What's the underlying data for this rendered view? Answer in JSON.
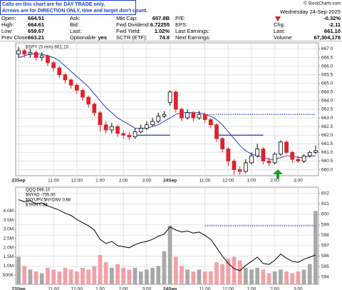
{
  "note": [
    "Calls on this chart are for DAY TRADE only.",
    "Arrows are for DIRECTION ONLY, time and target don't count."
  ],
  "copyright": "© StockCharts.com",
  "quote": {
    "columns": [
      [
        {
          "label": "Open:",
          "value": "664.51"
        },
        {
          "label": "High:",
          "value": "664.61"
        },
        {
          "label": "Low:",
          "value": "659.67"
        },
        {
          "label": "Prev Close:",
          "value": "663.21"
        }
      ],
      [
        {
          "label": "Ask:"
        },
        {
          "label": "Bid:"
        },
        {
          "label": "Last:"
        },
        {
          "label": "Optionable:",
          "value": "yes"
        }
      ],
      [
        {
          "label": "Mkt Cap:",
          "value": "657.8B"
        },
        {
          "label": "Fwd Dividend:",
          "value": "6.72255"
        },
        {
          "label": "Fwd Yield:",
          "value": "1.02%"
        },
        {
          "label": "SCTR (ETF):",
          "value": "74.8"
        }
      ],
      [
        {
          "label": "P/E:"
        },
        {
          "label": "EPS:"
        },
        {
          "label": "Last Earnings:"
        },
        {
          "label": "Next Earnings:"
        }
      ]
    ],
    "date": "Wednesday 24-Sep-2025",
    "change_pct": "-0.32%",
    "right": [
      {
        "label": "Chg:",
        "value": "-2.11"
      },
      {
        "label": "Last:",
        "value": "661.10"
      },
      {
        "label": "Volume:",
        "value": "67,304,176"
      }
    ]
  },
  "chart_data": [
    {
      "type": "candlestick",
      "label": "$SPY (5 min) 661.10",
      "categories": [
        "23Sep",
        null,
        null,
        null,
        null,
        null,
        "11:00",
        null,
        null,
        null,
        "12:00",
        null,
        null,
        null,
        "1:00",
        null,
        null,
        null,
        "2:00",
        null,
        null,
        null,
        "3:00",
        null,
        null,
        null,
        "24Sep",
        null,
        null,
        null,
        null,
        null,
        "11:00",
        null,
        null,
        null,
        "12:00",
        null,
        null,
        null,
        "1:00",
        null,
        null,
        null,
        "2:00",
        null,
        null,
        null,
        "3:00",
        null,
        null,
        null
      ],
      "open": [
        666.7,
        666.9,
        666.7,
        666.8,
        666.5,
        666.6,
        666.2,
        665.9,
        665.5,
        665.2,
        664.9,
        664.6,
        664.2,
        663.8,
        663.3,
        662.6,
        662.3,
        662.5,
        662.1,
        662.0,
        661.9,
        662.2,
        662.4,
        662.6,
        662.8,
        663.1,
        663.9,
        664.5,
        663.5,
        663.0,
        663.3,
        663.0,
        663.2,
        662.9,
        662.6,
        661.8,
        661.2,
        660.5,
        660.0,
        659.9,
        660.4,
        660.8,
        661.2,
        660.5,
        660.4,
        660.9,
        661.6,
        661.0,
        660.6,
        660.5,
        660.8,
        661.0
      ],
      "high": [
        667.1,
        667.0,
        667.0,
        666.9,
        666.8,
        666.7,
        666.3,
        666.0,
        665.6,
        665.3,
        665.0,
        664.7,
        664.3,
        663.9,
        663.4,
        662.8,
        662.7,
        662.6,
        662.3,
        662.2,
        662.4,
        662.6,
        662.8,
        663.0,
        663.3,
        663.4,
        664.6,
        664.6,
        663.6,
        663.5,
        663.4,
        663.4,
        663.3,
        663.0,
        662.7,
        661.9,
        661.3,
        660.6,
        660.2,
        660.6,
        661.0,
        661.5,
        661.3,
        660.7,
        661.0,
        661.7,
        661.7,
        661.1,
        660.8,
        660.9,
        661.1,
        661.4
      ],
      "low": [
        666.5,
        666.5,
        666.5,
        666.3,
        666.3,
        666.0,
        665.7,
        665.3,
        665.0,
        664.7,
        664.4,
        664.0,
        663.6,
        663.1,
        662.2,
        662.1,
        662.1,
        661.9,
        661.8,
        661.7,
        661.8,
        662.1,
        662.3,
        662.5,
        662.7,
        663.0,
        663.7,
        663.3,
        662.8,
        662.9,
        662.8,
        662.9,
        662.7,
        662.4,
        661.6,
        661.0,
        660.2,
        659.7,
        659.7,
        659.8,
        660.3,
        660.7,
        660.3,
        660.2,
        660.3,
        660.8,
        660.9,
        660.4,
        660.4,
        660.4,
        660.7,
        660.9
      ],
      "close": [
        666.9,
        666.7,
        666.8,
        666.5,
        666.6,
        666.2,
        665.9,
        665.5,
        665.2,
        664.9,
        664.6,
        664.2,
        663.8,
        663.3,
        662.6,
        662.3,
        662.5,
        662.1,
        662.0,
        661.9,
        662.2,
        662.4,
        662.6,
        662.8,
        663.1,
        663.2,
        664.5,
        663.5,
        663.0,
        663.3,
        663.0,
        663.2,
        662.9,
        662.6,
        661.8,
        661.2,
        660.5,
        660.0,
        659.9,
        660.4,
        660.8,
        661.2,
        660.5,
        660.4,
        660.9,
        661.6,
        661.0,
        660.6,
        660.5,
        660.8,
        661.0,
        661.1
      ],
      "up_color": "#000000",
      "down_color": "#e0202a",
      "overlay": {
        "color": "#2b3fbf",
        "values": [
          666.5,
          666.6,
          666.7,
          666.7,
          666.7,
          666.6,
          666.5,
          666.3,
          666.0,
          665.7,
          665.4,
          665.1,
          664.8,
          664.4,
          664.0,
          663.6,
          663.3,
          663.0,
          662.8,
          662.6,
          662.4,
          662.4,
          662.4,
          662.5,
          662.6,
          662.8,
          663.0,
          663.2,
          663.3,
          663.3,
          663.3,
          663.3,
          663.2,
          663.1,
          662.9,
          662.6,
          662.2,
          661.8,
          661.4,
          661.1,
          660.9,
          660.8,
          660.7,
          660.6,
          660.6,
          660.7,
          660.8,
          660.8,
          660.7,
          660.7,
          660.8,
          660.8
        ]
      },
      "levels": [
        {
          "value": 663.2,
          "from": 32,
          "to": 51,
          "style": "dotted",
          "color": "#3344cc"
        },
        {
          "value": 662.0,
          "from": 20,
          "to": 26,
          "style": "solid",
          "color": "#2233bb"
        },
        {
          "value": 662.0,
          "from": 34,
          "to": 42,
          "style": "solid",
          "color": "#2233bb"
        }
      ],
      "ylim": [
        659.65,
        667.35
      ],
      "yticks": [
        {
          "value": 660,
          "label": "660.0"
        },
        660.5,
        {
          "value": 661,
          "label": "661.0"
        },
        661.5,
        {
          "value": 662,
          "label": "662.0"
        },
        662.5,
        {
          "value": 663,
          "label": "663.0"
        },
        663.5,
        {
          "value": 664,
          "label": "664.0"
        },
        664.5,
        {
          "value": 665,
          "label": "665.0"
        },
        665.5,
        {
          "value": 666,
          "label": "666.0"
        },
        666.5,
        {
          "value": 667,
          "label": "667.0"
        }
      ],
      "grid": true
    },
    {
      "type": "line",
      "labels": [
        "QQQ 596.10",
        "$NYAD -705.00",
        "$NYUPV:$NYDNV 0.68",
        "$TRIN 0.88"
      ],
      "categories": [
        "23Sep",
        null,
        null,
        null,
        null,
        null,
        "11:00",
        null,
        null,
        null,
        "12:00",
        null,
        null,
        null,
        "1:00",
        null,
        null,
        null,
        "2:00",
        null,
        null,
        null,
        "3:00",
        null,
        null,
        null,
        "24Sep",
        null,
        null,
        null,
        null,
        null,
        "11:00",
        null,
        null,
        null,
        "12:00",
        null,
        null,
        null,
        "1:00",
        null,
        null,
        null,
        "2:00",
        null,
        null,
        null,
        "3:00",
        null,
        null,
        null
      ],
      "series": [
        {
          "color": "#000000",
          "values": [
            601.4,
            601.2,
            601.3,
            601.0,
            601.1,
            600.8,
            600.6,
            600.4,
            600.1,
            599.9,
            599.5,
            599.2,
            598.9,
            598.5,
            597.6,
            597.2,
            597.4,
            597.0,
            596.9,
            596.8,
            597.1,
            597.3,
            597.4,
            597.6,
            597.9,
            598.1,
            598.8,
            598.5,
            598.3,
            598.4,
            598.2,
            598.3,
            598.0,
            597.6,
            596.8,
            596.0,
            595.3,
            594.8,
            594.6,
            595.1,
            595.5,
            595.9,
            595.3,
            595.2,
            595.6,
            596.2,
            595.8,
            595.5,
            595.4,
            595.7,
            595.9,
            596.1
          ]
        }
      ],
      "volume": {
        "up_color": "#a8a8a8",
        "down_color": "#f3a0a6",
        "axis": "y2",
        "values": [
          1500000,
          1000000,
          800000,
          700000,
          600000,
          900000,
          800000,
          700000,
          900000,
          800000,
          700000,
          900000,
          800000,
          1000000,
          1600000,
          1200000,
          900000,
          1100000,
          900000,
          800000,
          900000,
          700000,
          800000,
          900000,
          1000000,
          1800000,
          3200000,
          1500000,
          1000000,
          800000,
          700000,
          800000,
          700000,
          700000,
          1200000,
          1100000,
          1400000,
          1500000,
          1300000,
          900000,
          800000,
          900000,
          800000,
          600000,
          700000,
          800000,
          700000,
          600000,
          700000,
          800000,
          1100000,
          4000000
        ]
      },
      "levels": [
        {
          "value": 598.9,
          "from": 32,
          "to": 51,
          "style": "dotted",
          "color": "#3344cc"
        }
      ],
      "ylim": [
        593.3,
        602.6
      ],
      "yticks": [
        594,
        595,
        596,
        597,
        598,
        599,
        600,
        601,
        602
      ],
      "y2lim": [
        0,
        5300000
      ],
      "y2ticks": [
        {
          "value": 500000,
          "label": "500K"
        },
        {
          "value": 1000000,
          "label": "1.0M"
        },
        {
          "value": 1500000,
          "label": "1.5M"
        },
        {
          "value": 2000000,
          "label": "2.0M"
        },
        {
          "value": 2500000,
          "label": "2.5M"
        },
        {
          "value": 3000000,
          "label": "3.0M"
        },
        {
          "value": 3500000,
          "label": "3.5M"
        },
        {
          "value": 4000000,
          "label": "4.0M"
        }
      ],
      "grid": true
    }
  ]
}
